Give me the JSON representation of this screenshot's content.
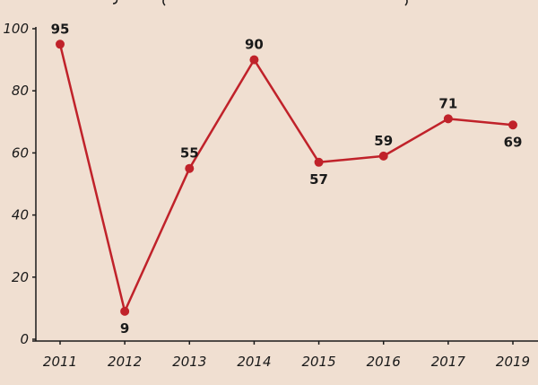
{
  "chart_data": {
    "type": "line",
    "title": "",
    "xlabel": "",
    "ylabel": "",
    "x": [
      "2011",
      "2012",
      "2013",
      "2014",
      "2015",
      "2016",
      "2017",
      "2019"
    ],
    "series": [
      {
        "values": [
          95,
          9,
          55,
          90,
          57,
          59,
          71,
          69
        ]
      }
    ],
    "ylim": [
      0,
      100
    ],
    "yticks": [
      0,
      20,
      40,
      60,
      80,
      100
    ],
    "grid": false,
    "legend": "none",
    "colors": {
      "line": "#c0222a",
      "marker": "#c0222a",
      "background": "#f0dfd1",
      "axis": "#1a1a1a"
    }
  }
}
